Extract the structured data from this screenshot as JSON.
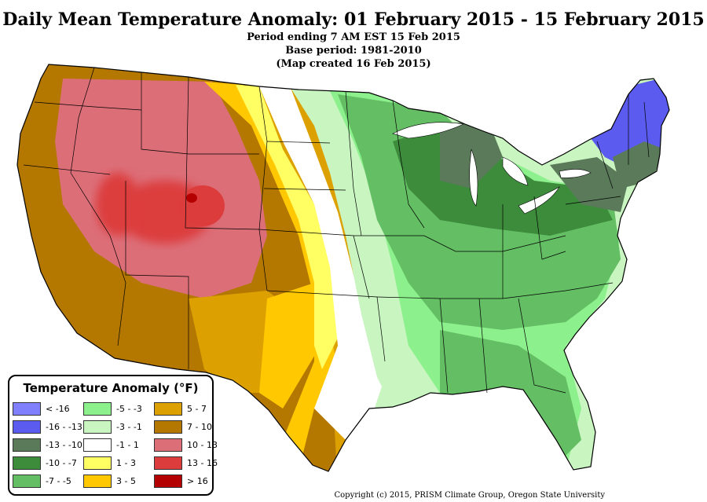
{
  "header": {
    "title": "Daily Mean Temperature Anomaly: 01 February 2015 - 15 February 2015",
    "subtitle1": "Period ending 7 AM EST 15 Feb 2015",
    "subtitle2": "Base period: 1981-2010",
    "subtitle3": "(Map created 16 Feb 2015)"
  },
  "legend": {
    "title": "Temperature Anomaly (°F)",
    "items": [
      {
        "label": "< -16",
        "color": "#8080ff"
      },
      {
        "label": "-16 - -13",
        "color": "#5b5bf0"
      },
      {
        "label": "-13 - -10",
        "color": "#5a7a5a"
      },
      {
        "label": "-10 - -7",
        "color": "#3c8c3c"
      },
      {
        "label": "-7 - -5",
        "color": "#64be64"
      },
      {
        "label": "-5 - -3",
        "color": "#8cf08c"
      },
      {
        "label": "-3 - -1",
        "color": "#c8f5c0"
      },
      {
        "label": "-1 - 1",
        "color": "#ffffff"
      },
      {
        "label": "1 - 3",
        "color": "#ffff64"
      },
      {
        "label": "3 - 5",
        "color": "#ffc800"
      },
      {
        "label": "5 - 7",
        "color": "#dca000"
      },
      {
        "label": "7 - 10",
        "color": "#b47800"
      },
      {
        "label": "10 - 13",
        "color": "#dc6e78"
      },
      {
        "label": "13 - 16",
        "color": "#dc3c3c"
      },
      {
        "label": "> 16",
        "color": "#b40000"
      }
    ]
  },
  "footer": {
    "copyright": "Copyright (c) 2015, PRISM Climate Group, Oregon State University"
  }
}
